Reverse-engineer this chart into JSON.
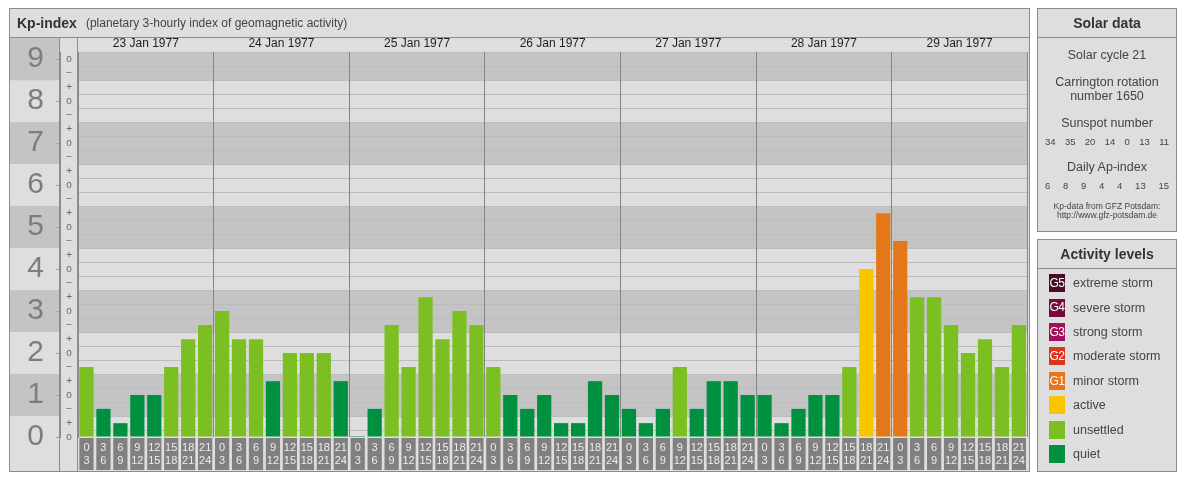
{
  "chart_data": [
    {
      "type": "bar",
      "title": "Kp-index",
      "subtitle": "(planetary 3-hourly index of geomagnetic activity)",
      "categories": [
        "0\n3",
        "3\n6",
        "6\n9",
        "9\n12",
        "12\n15",
        "15\n18",
        "18\n21",
        "21\n24",
        "0\n3",
        "3\n6",
        "6\n9",
        "9\n12",
        "12\n15",
        "15\n18",
        "18\n21",
        "21\n24",
        "0\n3",
        "3\n6",
        "6\n9",
        "9\n12",
        "12\n15",
        "15\n18",
        "18\n21",
        "21\n24",
        "0\n3",
        "3\n6",
        "6\n9",
        "9\n12",
        "12\n15",
        "15\n18",
        "18\n21",
        "21\n24",
        "0\n3",
        "3\n6",
        "6\n9",
        "9\n12",
        "12\n15",
        "15\n18",
        "18\n21",
        "21\n24",
        "0\n3",
        "3\n6",
        "6\n9",
        "9\n12",
        "12\n15",
        "15\n18",
        "18\n21",
        "21\n24",
        "0\n3",
        "3\n6",
        "6\n9",
        "9\n12",
        "12\n15",
        "15\n18",
        "18\n21",
        "21\n24"
      ],
      "series": [
        {
          "name": "extreme storm",
          "color": "#4a0b27",
          "values": [
            null,
            null,
            null,
            null,
            null,
            null,
            null,
            null,
            null,
            null,
            null,
            null,
            null,
            null,
            null,
            null,
            null,
            null,
            null,
            null,
            null,
            null,
            null,
            null,
            null,
            null,
            null,
            null,
            null,
            null,
            null,
            null,
            null,
            null,
            null,
            null,
            null,
            null,
            null,
            null,
            null,
            null,
            null,
            null,
            null,
            null,
            null,
            null,
            null,
            null,
            null,
            null,
            null,
            null,
            null,
            null
          ]
        },
        {
          "name": "severe storm",
          "color": "#730c3d",
          "values": [
            null,
            null,
            null,
            null,
            null,
            null,
            null,
            null,
            null,
            null,
            null,
            null,
            null,
            null,
            null,
            null,
            null,
            null,
            null,
            null,
            null,
            null,
            null,
            null,
            null,
            null,
            null,
            null,
            null,
            null,
            null,
            null,
            null,
            null,
            null,
            null,
            null,
            null,
            null,
            null,
            null,
            null,
            null,
            null,
            null,
            null,
            null,
            null,
            null,
            null,
            null,
            null,
            null,
            null,
            null,
            null
          ]
        },
        {
          "name": "strong storm",
          "color": "#a1105c",
          "values": [
            null,
            null,
            null,
            null,
            null,
            null,
            null,
            null,
            null,
            null,
            null,
            null,
            null,
            null,
            null,
            null,
            null,
            null,
            null,
            null,
            null,
            null,
            null,
            null,
            null,
            null,
            null,
            null,
            null,
            null,
            null,
            null,
            null,
            null,
            null,
            null,
            null,
            null,
            null,
            null,
            null,
            null,
            null,
            null,
            null,
            null,
            null,
            null,
            null,
            null,
            null,
            null,
            null,
            null,
            null,
            null
          ]
        },
        {
          "name": "moderate storm",
          "color": "#d8361e",
          "values": [
            null,
            null,
            null,
            null,
            null,
            null,
            null,
            null,
            null,
            null,
            null,
            null,
            null,
            null,
            null,
            null,
            null,
            null,
            null,
            null,
            null,
            null,
            null,
            null,
            null,
            null,
            null,
            null,
            null,
            null,
            null,
            null,
            null,
            null,
            null,
            null,
            null,
            null,
            null,
            null,
            null,
            null,
            null,
            null,
            null,
            null,
            null,
            null,
            null,
            null,
            null,
            null,
            null,
            null,
            null,
            null
          ]
        },
        {
          "name": "minor storm",
          "color": "#e47818",
          "values": [
            null,
            null,
            null,
            null,
            null,
            null,
            null,
            null,
            null,
            null,
            null,
            null,
            null,
            null,
            null,
            null,
            null,
            null,
            null,
            null,
            null,
            null,
            null,
            null,
            null,
            null,
            null,
            null,
            null,
            null,
            null,
            null,
            null,
            null,
            null,
            null,
            null,
            null,
            null,
            null,
            null,
            null,
            null,
            null,
            null,
            null,
            null,
            5.33,
            4.67,
            null,
            null,
            null,
            null,
            null,
            null,
            null
          ]
        },
        {
          "name": "active",
          "color": "#f9c400",
          "values": [
            null,
            null,
            null,
            null,
            null,
            null,
            null,
            null,
            null,
            null,
            null,
            null,
            null,
            null,
            null,
            null,
            null,
            null,
            null,
            null,
            null,
            null,
            null,
            null,
            null,
            null,
            null,
            null,
            null,
            null,
            null,
            null,
            null,
            null,
            null,
            null,
            null,
            null,
            null,
            null,
            null,
            null,
            null,
            null,
            null,
            null,
            4,
            null,
            null,
            null,
            null,
            null,
            null,
            null,
            null,
            null
          ]
        },
        {
          "name": "unsettled",
          "color": "#7bbf23",
          "values": [
            1.67,
            null,
            null,
            null,
            null,
            1.67,
            2.33,
            2.67,
            3,
            2.33,
            2.33,
            null,
            2,
            2,
            2,
            null,
            null,
            null,
            2.67,
            1.67,
            3.33,
            2.33,
            3,
            2.67,
            1.67,
            null,
            null,
            null,
            null,
            null,
            null,
            null,
            null,
            null,
            null,
            1.67,
            null,
            null,
            null,
            null,
            null,
            null,
            null,
            null,
            null,
            1.67,
            null,
            null,
            null,
            3.33,
            3.33,
            2.67,
            2,
            2.33,
            1.67,
            2.67
          ]
        },
        {
          "name": "quiet",
          "color": "#009140",
          "values": [
            null,
            0.67,
            0.33,
            1,
            1,
            null,
            null,
            null,
            null,
            null,
            null,
            1.33,
            null,
            null,
            null,
            1.33,
            0,
            0.67,
            null,
            null,
            null,
            null,
            null,
            null,
            null,
            1,
            0.67,
            1,
            0.33,
            0.33,
            1.33,
            1,
            0.67,
            0.33,
            0.67,
            null,
            0.67,
            1.33,
            1.33,
            1,
            1,
            0.33,
            0.67,
            1,
            1,
            null,
            null,
            null,
            null,
            null,
            null,
            null,
            null,
            null,
            null,
            null
          ]
        }
      ],
      "annotations": [
        "G5",
        "G4",
        "G3",
        "G2",
        "G1"
      ],
      "ylim": [
        0,
        9.17
      ],
      "yticks": [
        0,
        1,
        2,
        3,
        4,
        5,
        6,
        7,
        8,
        9
      ],
      "y2_categories": [
        "o",
        "−",
        "+",
        "o",
        "−",
        "+",
        "o",
        "−",
        "+",
        "o",
        "−",
        "+",
        "o",
        "−",
        "+",
        "o",
        "−",
        "+",
        "o",
        "−",
        "+",
        "o",
        "−",
        "+",
        "o",
        "−",
        "+",
        "o"
      ],
      "x2lim": [
        "1977-01-23",
        "1977-01-30"
      ],
      "x2ticks": [
        {
          "value": "1977-01-23T12:00",
          "label": "23 Jan 1977"
        },
        {
          "value": "1977-01-24T12:00",
          "label": "24 Jan 1977"
        },
        {
          "value": "1977-01-25T12:00",
          "label": "25 Jan 1977"
        },
        {
          "value": "1977-01-26T12:00",
          "label": "26 Jan 1977"
        },
        {
          "value": "1977-01-27T12:00",
          "label": "27 Jan 1977"
        },
        {
          "value": "1977-01-28T12:00",
          "label": "28 Jan 1977"
        },
        {
          "value": "1977-01-29T12:00",
          "label": "29 Jan 1977"
        }
      ],
      "bands": [
        {
          "axis": "y",
          "from": 0.5,
          "to": 1.5,
          "color": "#c4c4c4"
        },
        {
          "axis": "y",
          "from": 2.5,
          "to": 3.5,
          "color": "#c4c4c4"
        },
        {
          "axis": "y",
          "from": 4.5,
          "to": 5.5,
          "color": "#c4c4c4"
        },
        {
          "axis": "y",
          "from": 6.5,
          "to": 7.5,
          "color": "#c4c4c4"
        },
        {
          "axis": "y",
          "from": 8.5,
          "to": 9.17,
          "color": "#c4c4c4"
        }
      ],
      "grid": true,
      "legend": "right",
      "legend_title": "Activity levels"
    },
    {
      "type": "other",
      "title": "Solar data",
      "annotations": [
        "Solar cycle 21",
        "Carrington rotation number 1650",
        "Sunspot number",
        "34 35 20 14 0 13 11",
        "Daily Ap-index",
        "6 8 9 4 4 13 15",
        "Kp-data from GFZ Potsdam: http://www.gfz-potsdam.de"
      ]
    }
  ]
}
